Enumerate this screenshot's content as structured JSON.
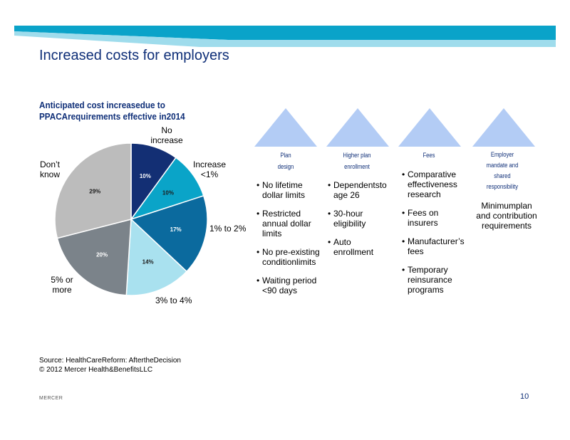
{
  "slide": {
    "title": "Increased costs for employers",
    "source_line1": "Source: HealthCareReform: AftertheDecision",
    "source_line2": "© 2012 Mercer Health&BenefitsLLC",
    "footer_brand": "MERCER",
    "page_number": "10"
  },
  "colors": {
    "band_dark": "#0aa3c9",
    "band_light": "#9fdcec",
    "title": "#0f2f78",
    "triangle": "#b3ccf5"
  },
  "chart_data": {
    "type": "pie",
    "title_line1": "Anticipated cost increasedue to",
    "title_line2": "PPACArequirements effective in2014",
    "slices": [
      {
        "label_line1": "No",
        "label_line2": "increase",
        "value": 10,
        "value_label": "10%",
        "color": "#132f74"
      },
      {
        "label_line1": "Increase",
        "label_line2": "<1%",
        "value": 10,
        "value_label": "10%",
        "color": "#0aa4c8"
      },
      {
        "label_line1": "1% to 2%",
        "label_line2": "",
        "value": 17,
        "value_label": "17%",
        "color": "#0b6a9e"
      },
      {
        "label_line1": "3% to 4%",
        "label_line2": "",
        "value": 14,
        "value_label": "14%",
        "color": "#a9e1ef"
      },
      {
        "label_line1": "5% or",
        "label_line2": "more",
        "value": 20,
        "value_label": "20%",
        "color": "#7b838a"
      },
      {
        "label_line1": "Don’t",
        "label_line2": "know",
        "value": 29,
        "value_label": "29%",
        "color": "#bcbcbc"
      }
    ]
  },
  "categories": [
    {
      "head_line1": "Plan",
      "head_line2": "design",
      "bullets": [
        "No lifetime dollar limits",
        "Restricted annual dollar limits",
        "No pre-existing conditionlimits",
        "Waiting period <90 days"
      ]
    },
    {
      "head_line1": "Higher plan",
      "head_line2": "enrollment",
      "bullets": [
        "Dependentsto age 26",
        "30-hour eligibility",
        "Auto enrollment"
      ]
    },
    {
      "head_line1": "Fees",
      "head_line2": "",
      "bullets": [
        "Comparative effectiveness research",
        "Fees on insurers",
        "Manufacturer’s fees",
        "Temporary reinsurance programs"
      ]
    },
    {
      "head_line1": "Employer",
      "head_line2": "mandate and",
      "head_line3": "shared",
      "head_line4": "responsibility",
      "text": "Minimumplan and contribution requirements"
    }
  ]
}
